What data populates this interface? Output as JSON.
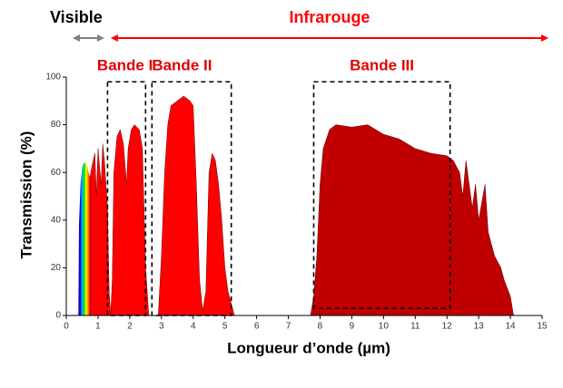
{
  "chart_data": {
    "type": "area",
    "xlabel": "Longueur d’onde (µm)",
    "ylabel": "Transmission (%)",
    "xlim": [
      0,
      15
    ],
    "ylim": [
      0,
      100
    ],
    "xticks": [
      0,
      1,
      2,
      3,
      4,
      5,
      6,
      7,
      8,
      9,
      10,
      11,
      12,
      13,
      14,
      15
    ],
    "yticks": [
      0,
      20,
      40,
      60,
      80,
      100
    ],
    "series": [
      {
        "colors": [
          "#4b0082",
          "#0000ff",
          "#00c0ff",
          "#00e000",
          "#ffff00",
          "#ff8000",
          "#ff0000"
        ],
        "x": [
          0.38,
          0.4,
          0.45,
          0.5,
          0.55,
          0.6,
          0.65,
          0.7,
          0.75
        ],
        "values": [
          0,
          38,
          55,
          62,
          64,
          64,
          63,
          60,
          58
        ]
      },
      {
        "color": "#ff0000",
        "x": [
          0.75,
          0.8,
          0.9,
          0.95,
          1.0,
          1.05,
          1.1,
          1.15,
          1.2,
          1.3,
          1.35,
          1.4,
          1.45,
          1.5,
          1.6,
          1.7,
          1.8,
          1.9,
          1.95,
          2.05,
          2.15,
          2.3,
          2.4,
          2.5,
          2.6,
          2.9,
          3.0,
          3.1,
          3.2,
          3.3,
          3.5,
          3.7,
          3.9,
          4.0,
          4.1,
          4.2,
          4.3,
          4.4,
          4.5,
          4.6,
          4.7,
          4.8,
          4.9,
          5.0,
          5.1,
          5.2,
          5.3
        ],
        "values": [
          58,
          62,
          68,
          50,
          70,
          62,
          55,
          72,
          65,
          45,
          10,
          0,
          15,
          60,
          75,
          78,
          72,
          55,
          70,
          78,
          80,
          78,
          70,
          20,
          0,
          0,
          25,
          60,
          80,
          88,
          90,
          92,
          90,
          88,
          55,
          15,
          2,
          10,
          60,
          68,
          65,
          55,
          40,
          20,
          10,
          5,
          0
        ]
      },
      {
        "color": "#c00000",
        "x": [
          7.7,
          7.8,
          7.9,
          8.0,
          8.1,
          8.3,
          8.5,
          9.0,
          9.5,
          10.0,
          10.5,
          11.0,
          11.5,
          12.0,
          12.2,
          12.4,
          12.5,
          12.6,
          12.8,
          12.9,
          13.0,
          13.2,
          13.3,
          13.5,
          13.7,
          13.8,
          14.0,
          14.1
        ],
        "values": [
          0,
          8,
          25,
          55,
          70,
          78,
          80,
          79,
          80,
          76,
          74,
          70,
          68,
          67,
          65,
          60,
          50,
          65,
          45,
          55,
          40,
          55,
          35,
          25,
          20,
          15,
          8,
          0
        ]
      }
    ],
    "bands": [
      {
        "label": "Bande I",
        "x": [
          1.3,
          2.5
        ],
        "y": [
          0,
          98
        ]
      },
      {
        "label": "Bande II",
        "x": [
          2.7,
          5.2
        ],
        "y": [
          0,
          98
        ]
      },
      {
        "label": "Bande III",
        "x": [
          7.8,
          12.1
        ],
        "y": [
          3,
          98
        ]
      }
    ],
    "arrows": [
      {
        "label": "Visible",
        "color": "#808080",
        "x": [
          0.2,
          1.2
        ]
      },
      {
        "label": "Infrarouge",
        "color": "#ff0000",
        "x": [
          1.4,
          15.2
        ]
      }
    ]
  }
}
